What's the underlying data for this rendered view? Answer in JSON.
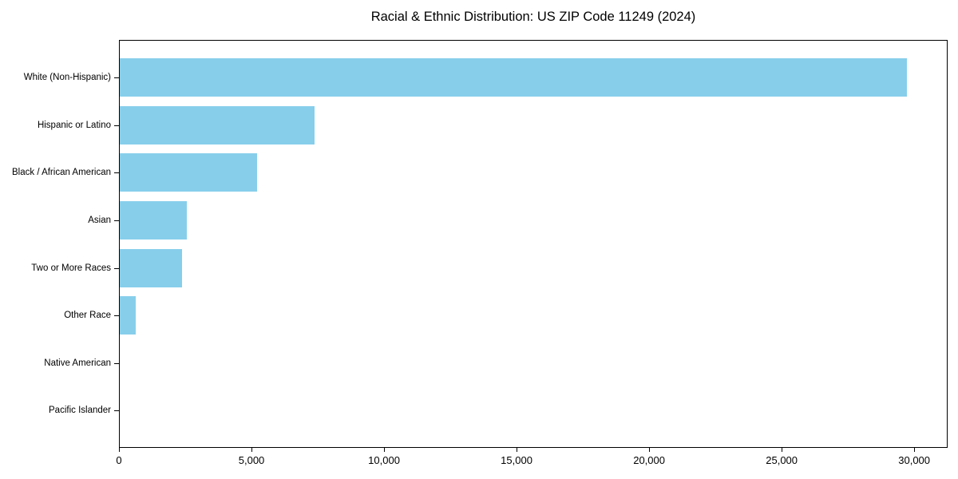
{
  "window": {
    "background_color": "#ffffff"
  },
  "chart_data": {
    "type": "bar",
    "orientation": "horizontal",
    "title": "Racial & Ethnic Distribution: US ZIP Code 11249 (2024)",
    "categories": [
      "White (Non-Hispanic)",
      "Hispanic or Latino",
      "Black / African American",
      "Asian",
      "Two or More Races",
      "Other Race",
      "Native American",
      "Pacific Islander"
    ],
    "values": [
      29700,
      7350,
      5190,
      2540,
      2340,
      610,
      0,
      0
    ],
    "bar_color": "#87CEEB",
    "axis_color": "#000000",
    "text_color": "#000000",
    "xlabel": "",
    "ylabel": "",
    "xlim": [
      0,
      31200
    ],
    "x_ticks": [
      0,
      5000,
      10000,
      15000,
      20000,
      25000,
      30000
    ],
    "x_tick_labels": [
      "0",
      "5,000",
      "10,000",
      "15,000",
      "20,000",
      "25,000",
      "30,000"
    ],
    "grid": false,
    "legend": false,
    "category_order": "largest value at top, zero-value categories (Native American, Pacific Islander) show no visible bar"
  }
}
